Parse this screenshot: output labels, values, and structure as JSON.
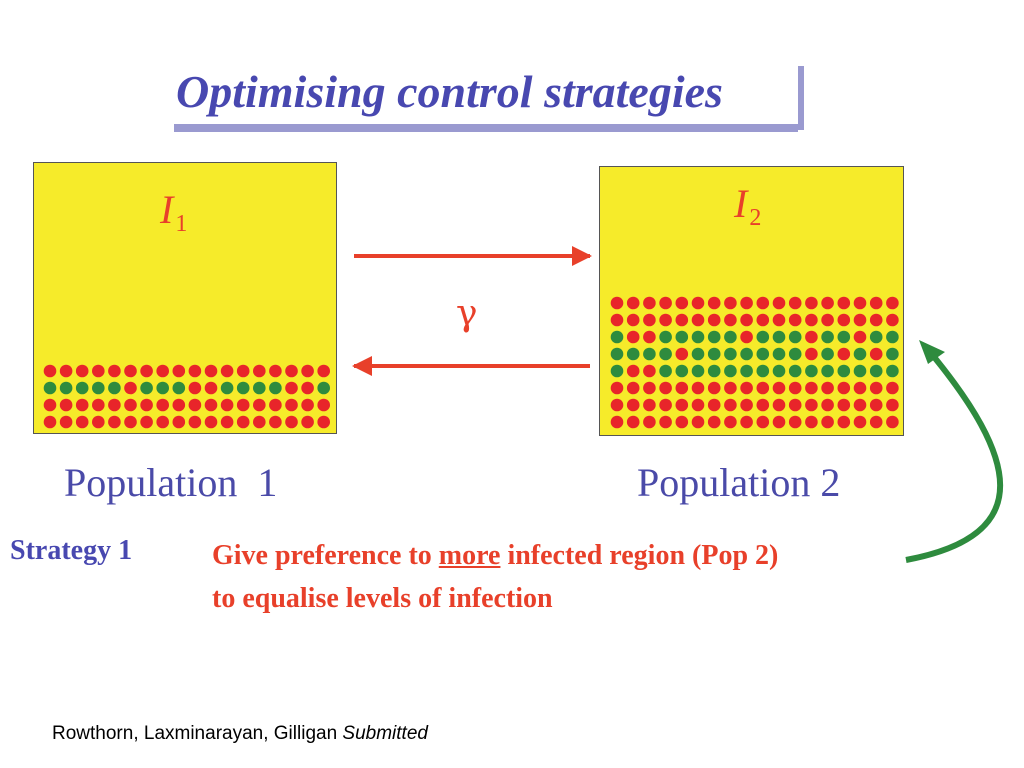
{
  "title": "Optimising control strategies",
  "population1": {
    "variable": "I",
    "subscript": "1",
    "label": "Population  1"
  },
  "population2": {
    "variable": "I",
    "subscript": "2",
    "label": "Population 2"
  },
  "transfer_symbol": "γ",
  "strategy": {
    "label": "Strategy 1",
    "line1_before": "Give preference to ",
    "line1_emphasis": "more",
    "line1_after": " infected region (Pop 2)",
    "line2": "to equalise levels of infection"
  },
  "citation": {
    "authors": "Rowthorn, Laxminarayan, Gilligan",
    "status": "Submitted"
  },
  "colors": {
    "box_fill": "#f6eb2a",
    "infected_dot": "#e8252a",
    "treated_dot": "#2e8b3e",
    "arrow_red": "#e8402a",
    "arrow_green": "#2e8b3e",
    "title_color": "#4848b0",
    "title_bar": "#9a9ad0"
  },
  "dots": {
    "population1_rows": [
      "RRRRRRRRRRRRRRRRRR",
      "GGGGGRGGGRRGGGGRRG",
      "RRRRRRRRRRRRRRRRRR",
      "RRRRRRRRRRRRRRRRRR"
    ],
    "population2_rows": [
      "RRRRRRRRRRRRRRRRRR",
      "RRRRRRRRRRRRRRRRRR",
      "GRRGGGGGRGGGRGGRGG",
      "GGGGRGGGGGGGRGRGRG",
      "GRRGGGGGGGGGGGGGGG",
      "RRRRRRRRRRRRRRRRRR",
      "RRRRRRRRRRRRRRRRRR",
      "RRRRRRRRRRRRRRRRRR"
    ]
  }
}
